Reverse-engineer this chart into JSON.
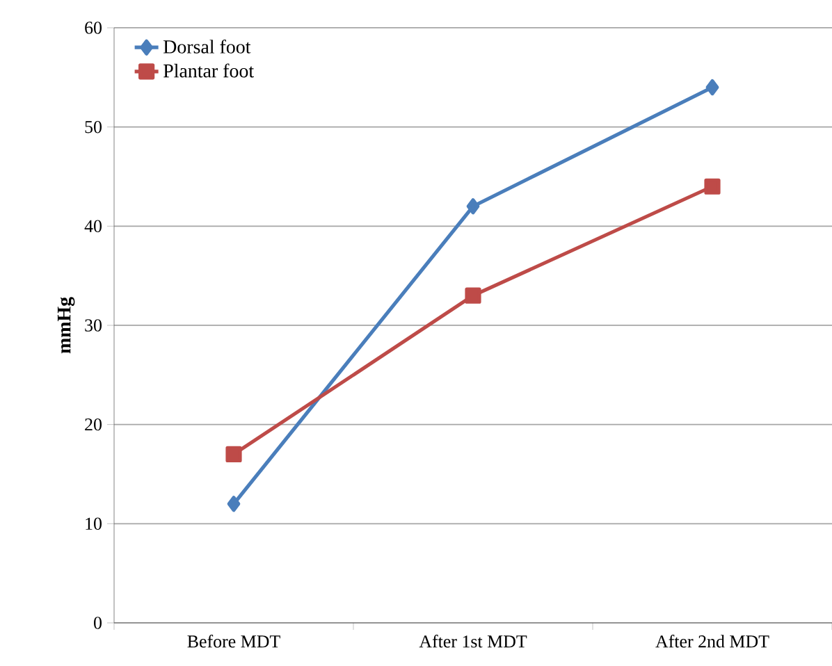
{
  "chart_data": {
    "type": "line",
    "ylabel": "mmHg",
    "categories": [
      "Before MDT",
      "After 1st MDT",
      "After 2nd MDT"
    ],
    "series": [
      {
        "name": "Dorsal foot",
        "color": "#4a7ebb",
        "marker": "diamond",
        "values": [
          12,
          42,
          54
        ]
      },
      {
        "name": "Plantar foot",
        "color": "#be4b48",
        "marker": "square",
        "values": [
          17,
          33,
          44
        ]
      }
    ],
    "ylim": [
      0,
      60
    ],
    "yticks": [
      0,
      10,
      20,
      30,
      40,
      50,
      60
    ],
    "grid": "y",
    "legend": "top left"
  }
}
